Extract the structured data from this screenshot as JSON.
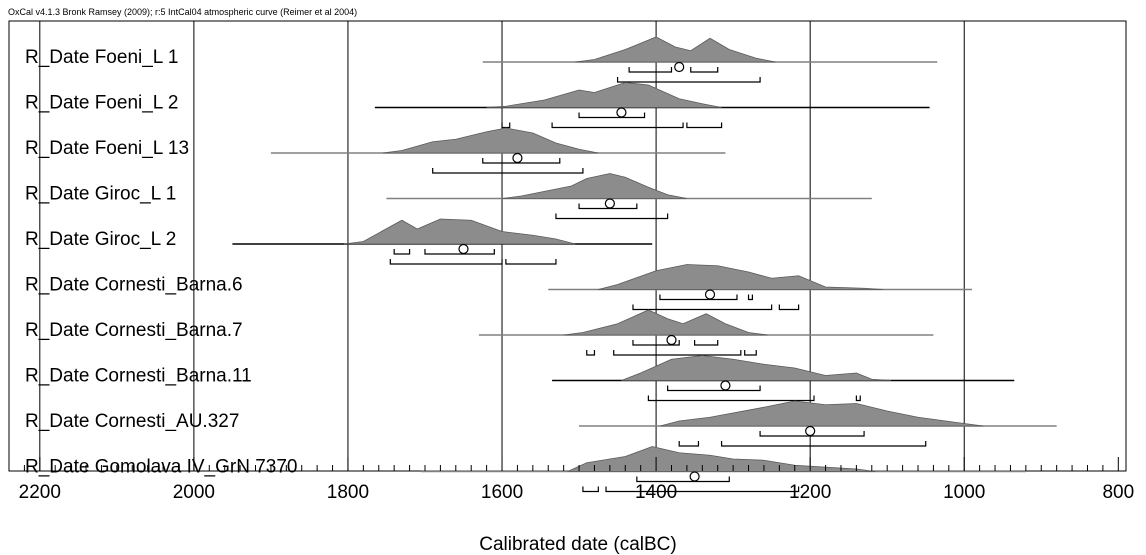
{
  "chart_data": {
    "type": "oxcal_multiplot",
    "header": "OxCal v4.1.3 Bronk Ramsey (2009); r:5 IntCal04 atmospheric curve (Reimer et al 2004)",
    "xlabel": "Calibrated date (calBC)",
    "xlim": [
      2240,
      790
    ],
    "x_reversed": true,
    "major_ticks": [
      2200,
      2000,
      1800,
      1600,
      1400,
      1200,
      1000,
      800
    ],
    "minor_tick_step": 20,
    "gridlines_x": [
      2200,
      2000,
      1800,
      1600,
      1400,
      1200,
      1000
    ],
    "rows": [
      {
        "label": "R_Date Foeni_L 1",
        "line_range": [
          1625,
          1035
        ],
        "line_color": "#808080",
        "median": 1370,
        "peaks": [
          [
            1480,
            0.1
          ],
          [
            1440,
            0.5
          ],
          [
            1400,
            1.0
          ],
          [
            1375,
            0.6
          ],
          [
            1355,
            0.45
          ],
          [
            1330,
            0.95
          ],
          [
            1305,
            0.5
          ],
          [
            1270,
            0.15
          ]
        ],
        "range_1sigma": [
          [
            1435,
            1380
          ],
          [
            1355,
            1320
          ]
        ],
        "range_2sigma": [
          [
            1450,
            1265
          ]
        ]
      },
      {
        "label": "R_Date Foeni_L 2",
        "line_range": [
          1765,
          1045
        ],
        "line_color": "#000000",
        "median": 1445,
        "peaks": [
          [
            1595,
            0.05
          ],
          [
            1545,
            0.3
          ],
          [
            1500,
            0.7
          ],
          [
            1480,
            0.6
          ],
          [
            1440,
            1.0
          ],
          [
            1410,
            0.9
          ],
          [
            1370,
            0.35
          ],
          [
            1340,
            0.15
          ]
        ],
        "range_1sigma": [
          [
            1500,
            1415
          ]
        ],
        "range_2sigma": [
          [
            1600,
            1590
          ],
          [
            1535,
            1365
          ],
          [
            1360,
            1315
          ]
        ]
      },
      {
        "label": "R_Date Foeni_L 13",
        "line_range": [
          1900,
          1310
        ],
        "line_color": "#808080",
        "median": 1580,
        "peaks": [
          [
            1730,
            0.1
          ],
          [
            1690,
            0.45
          ],
          [
            1660,
            0.55
          ],
          [
            1620,
            0.85
          ],
          [
            1595,
            1.0
          ],
          [
            1560,
            0.8
          ],
          [
            1530,
            0.4
          ],
          [
            1500,
            0.15
          ]
        ],
        "range_1sigma": [
          [
            1625,
            1525
          ]
        ],
        "range_2sigma": [
          [
            1690,
            1495
          ]
        ]
      },
      {
        "label": "R_Date Giroc_L 1",
        "line_range": [
          1750,
          1120
        ],
        "line_color": "#808080",
        "median": 1460,
        "peaks": [
          [
            1575,
            0.1
          ],
          [
            1510,
            0.5
          ],
          [
            1490,
            0.8
          ],
          [
            1460,
            1.0
          ],
          [
            1440,
            0.85
          ],
          [
            1410,
            0.45
          ],
          [
            1385,
            0.15
          ]
        ],
        "range_1sigma": [
          [
            1500,
            1425
          ]
        ],
        "range_2sigma": [
          [
            1530,
            1385
          ]
        ]
      },
      {
        "label": "R_Date Giroc_L 2",
        "line_range": [
          1950,
          1405
        ],
        "line_color": "#000000",
        "median": 1650,
        "peaks": [
          [
            1780,
            0.1
          ],
          [
            1730,
            0.95
          ],
          [
            1710,
            0.6
          ],
          [
            1680,
            1.0
          ],
          [
            1640,
            0.95
          ],
          [
            1600,
            0.5
          ],
          [
            1560,
            0.35
          ],
          [
            1530,
            0.2
          ]
        ],
        "range_1sigma": [
          [
            1740,
            1720
          ],
          [
            1700,
            1610
          ]
        ],
        "range_2sigma": [
          [
            1745,
            1600
          ],
          [
            1595,
            1530
          ]
        ]
      },
      {
        "label": "R_Date Cornesti_Barna.6",
        "line_range": [
          1540,
          990
        ],
        "line_color": "#808080",
        "median": 1330,
        "peaks": [
          [
            1450,
            0.2
          ],
          [
            1400,
            0.75
          ],
          [
            1360,
            1.0
          ],
          [
            1320,
            0.95
          ],
          [
            1280,
            0.7
          ],
          [
            1250,
            0.45
          ],
          [
            1215,
            0.55
          ],
          [
            1180,
            0.1
          ],
          [
            1130,
            0.05
          ]
        ],
        "range_1sigma": [
          [
            1395,
            1295
          ],
          [
            1280,
            1275
          ]
        ],
        "range_2sigma": [
          [
            1430,
            1250
          ],
          [
            1240,
            1215
          ]
        ]
      },
      {
        "label": "R_Date Cornesti_Barna.7",
        "line_range": [
          1630,
          1040
        ],
        "line_color": "#808080",
        "median": 1380,
        "peaks": [
          [
            1495,
            0.1
          ],
          [
            1450,
            0.45
          ],
          [
            1410,
            1.0
          ],
          [
            1385,
            0.65
          ],
          [
            1365,
            0.45
          ],
          [
            1335,
            0.85
          ],
          [
            1310,
            0.45
          ],
          [
            1280,
            0.1
          ]
        ],
        "range_1sigma": [
          [
            1430,
            1370
          ],
          [
            1350,
            1320
          ]
        ],
        "range_2sigma": [
          [
            1490,
            1480
          ],
          [
            1455,
            1290
          ],
          [
            1285,
            1270
          ]
        ]
      },
      {
        "label": "R_Date Cornesti_Barna.11",
        "line_range": [
          1535,
          935
        ],
        "line_color": "#000000",
        "median": 1310,
        "peaks": [
          [
            1420,
            0.3
          ],
          [
            1380,
            0.85
          ],
          [
            1340,
            1.0
          ],
          [
            1300,
            0.85
          ],
          [
            1260,
            0.65
          ],
          [
            1220,
            0.5
          ],
          [
            1180,
            0.2
          ],
          [
            1140,
            0.3
          ],
          [
            1120,
            0.05
          ]
        ],
        "range_1sigma": [
          [
            1385,
            1265
          ]
        ],
        "range_2sigma": [
          [
            1410,
            1195
          ],
          [
            1140,
            1135
          ]
        ]
      },
      {
        "label": "R_Date Cornesti_AU.327",
        "line_range": [
          1500,
          880
        ],
        "line_color": "#808080",
        "median": 1200,
        "peaks": [
          [
            1370,
            0.2
          ],
          [
            1330,
            0.35
          ],
          [
            1260,
            0.75
          ],
          [
            1220,
            1.0
          ],
          [
            1180,
            0.85
          ],
          [
            1140,
            0.9
          ],
          [
            1100,
            0.6
          ],
          [
            1060,
            0.35
          ],
          [
            1000,
            0.1
          ]
        ],
        "range_1sigma": [
          [
            1265,
            1130
          ]
        ],
        "range_2sigma": [
          [
            1370,
            1345
          ],
          [
            1315,
            1050
          ]
        ]
      },
      {
        "label": "R_Date Gomolava IV_GrN 7370",
        "line_range": [
          1705,
          920
        ],
        "line_color": "#808080",
        "median": 1350,
        "peaks": [
          [
            1490,
            0.35
          ],
          [
            1440,
            0.6
          ],
          [
            1405,
            1.0
          ],
          [
            1370,
            0.75
          ],
          [
            1330,
            0.65
          ],
          [
            1300,
            0.5
          ],
          [
            1260,
            0.45
          ],
          [
            1220,
            0.25
          ],
          [
            1140,
            0.1
          ]
        ],
        "range_1sigma": [
          [
            1425,
            1305
          ]
        ],
        "range_2sigma": [
          [
            1495,
            1475
          ],
          [
            1465,
            1215
          ]
        ]
      }
    ]
  }
}
